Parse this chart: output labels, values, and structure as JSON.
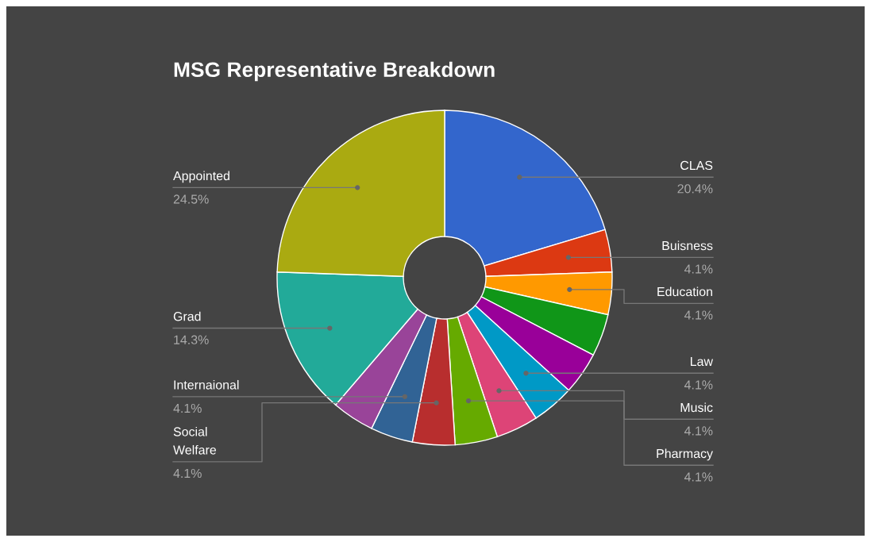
{
  "chart_data": {
    "type": "donut",
    "title": "MSG Representative Breakdown",
    "categories": [
      "CLAS",
      "Buisness",
      "Education",
      null,
      null,
      "Law",
      "Music",
      "Pharmacy",
      "Social\nWelfare",
      "Internaional",
      null,
      "Grad",
      "Appointed"
    ],
    "values": [
      20.4,
      4.1,
      4.1,
      4.1,
      4.1,
      4.1,
      4.1,
      4.1,
      4.1,
      4.1,
      4.1,
      14.3,
      24.5
    ],
    "value_labels": [
      "20.4%",
      "4.1%",
      "4.1%",
      null,
      null,
      "4.1%",
      "4.1%",
      "4.1%",
      "4.1%",
      "4.1%",
      null,
      "14.3%",
      "24.5%"
    ],
    "colors": [
      "#3366cc",
      "#dc3912",
      "#ff9900",
      "#109618",
      "#990099",
      "#0099c6",
      "#dd4477",
      "#66aa00",
      "#b82e2e",
      "#316395",
      "#994499",
      "#22aa99",
      "#aaaa11"
    ],
    "legend": false
  }
}
